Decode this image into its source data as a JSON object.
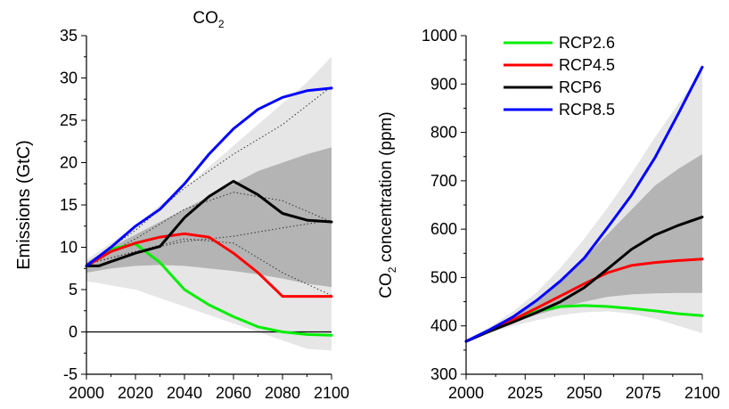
{
  "chart_data": [
    {
      "type": "line",
      "title": "CO",
      "title_sub": "2",
      "xlabel": "",
      "ylabel": "Emissions (GtC)",
      "xlim": [
        2000,
        2100
      ],
      "ylim": [
        -5,
        35
      ],
      "xticks": [
        2000,
        2020,
        2040,
        2060,
        2080,
        2100
      ],
      "yticks": [
        -5,
        0,
        5,
        10,
        15,
        20,
        25,
        30,
        35
      ],
      "zero_line": true,
      "bands": [
        {
          "role": "outer-range",
          "color": "#e6e6e6",
          "x": [
            2000,
            2010,
            2020,
            2030,
            2040,
            2050,
            2060,
            2070,
            2080,
            2090,
            2100
          ],
          "upper": [
            8.5,
            10.5,
            12.5,
            15.0,
            17.0,
            19.5,
            22.0,
            24.5,
            27.0,
            29.5,
            32.5
          ],
          "lower": [
            6.0,
            5.5,
            5.0,
            4.0,
            3.0,
            2.0,
            1.0,
            0.0,
            -1.0,
            -2.0,
            -2.2
          ]
        },
        {
          "role": "inner-range",
          "color": "#b4b4b4",
          "x": [
            2000,
            2010,
            2020,
            2030,
            2040,
            2050,
            2060,
            2070,
            2080,
            2090,
            2100
          ],
          "upper": [
            8.2,
            10.0,
            11.5,
            13.0,
            14.5,
            16.0,
            17.5,
            19.0,
            20.0,
            21.0,
            21.8
          ],
          "lower": [
            7.0,
            7.5,
            7.8,
            7.9,
            7.8,
            7.5,
            7.2,
            6.8,
            6.3,
            5.7,
            5.3
          ]
        }
      ],
      "reference_lines": [
        {
          "style": "dotted",
          "x": [
            2000,
            2020,
            2040,
            2060,
            2080,
            2100
          ],
          "y": [
            8.0,
            12.0,
            17.0,
            21.0,
            24.5,
            29.0
          ]
        },
        {
          "style": "dotted",
          "x": [
            2000,
            2020,
            2040,
            2060,
            2080,
            2100
          ],
          "y": [
            8.0,
            11.0,
            14.5,
            16.5,
            15.5,
            13.0
          ]
        },
        {
          "style": "dotted",
          "x": [
            2000,
            2020,
            2040,
            2060,
            2080,
            2100
          ],
          "y": [
            8.0,
            9.5,
            10.7,
            11.3,
            12.3,
            13.2
          ]
        },
        {
          "style": "dotted",
          "x": [
            2000,
            2020,
            2040,
            2060,
            2080,
            2100
          ],
          "y": [
            8.0,
            9.5,
            11.0,
            10.5,
            7.0,
            4.3
          ]
        }
      ],
      "series": [
        {
          "name": "RCP2.6",
          "color": "#00ee00",
          "x": [
            2000,
            2010,
            2020,
            2030,
            2040,
            2050,
            2060,
            2070,
            2080,
            2090,
            2100
          ],
          "y": [
            7.8,
            9.8,
            10.4,
            8.2,
            5.0,
            3.2,
            1.8,
            0.6,
            0.0,
            -0.3,
            -0.4
          ]
        },
        {
          "name": "RCP4.5",
          "color": "#ff0000",
          "x": [
            2000,
            2010,
            2020,
            2030,
            2040,
            2050,
            2060,
            2070,
            2080,
            2090,
            2100
          ],
          "y": [
            7.8,
            9.5,
            10.5,
            11.2,
            11.6,
            11.2,
            9.3,
            7.0,
            4.2,
            4.2,
            4.2
          ]
        },
        {
          "name": "RCP6",
          "color": "#000000",
          "x": [
            2000,
            2005,
            2010,
            2020,
            2030,
            2040,
            2050,
            2060,
            2070,
            2080,
            2090,
            2100
          ],
          "y": [
            7.8,
            7.8,
            8.3,
            9.3,
            10.1,
            13.5,
            16.0,
            17.8,
            16.2,
            14.0,
            13.2,
            13.0
          ]
        },
        {
          "name": "RCP8.5",
          "color": "#0000ff",
          "x": [
            2000,
            2010,
            2020,
            2030,
            2040,
            2050,
            2060,
            2070,
            2080,
            2090,
            2100
          ],
          "y": [
            7.8,
            10.0,
            12.5,
            14.5,
            17.5,
            21.0,
            24.0,
            26.3,
            27.7,
            28.5,
            28.8
          ]
        }
      ]
    },
    {
      "type": "line",
      "title": "",
      "xlabel": "",
      "ylabel_parts": [
        "CO",
        "2",
        " concentration (ppm)"
      ],
      "xlim": [
        2000,
        2100
      ],
      "ylim": [
        300,
        1000
      ],
      "xticks": [
        2000,
        2025,
        2050,
        2075,
        2100
      ],
      "yticks": [
        300,
        400,
        500,
        600,
        700,
        800,
        900,
        1000
      ],
      "legend": {
        "position": "top-left",
        "entries": [
          "RCP2.6",
          "RCP4.5",
          "RCP6",
          "RCP8.5"
        ]
      },
      "bands": [
        {
          "role": "outer-range",
          "color": "#e6e6e6",
          "x": [
            2000,
            2010,
            2020,
            2030,
            2040,
            2050,
            2060,
            2070,
            2080,
            2090,
            2100
          ],
          "upper": [
            372,
            398,
            430,
            470,
            520,
            580,
            645,
            715,
            790,
            860,
            930
          ],
          "lower": [
            365,
            385,
            400,
            412,
            422,
            428,
            430,
            425,
            415,
            400,
            385
          ]
        },
        {
          "role": "inner-range",
          "color": "#b4b4b4",
          "x": [
            2000,
            2010,
            2020,
            2030,
            2040,
            2050,
            2060,
            2070,
            2080,
            2090,
            2100
          ],
          "upper": [
            370,
            392,
            418,
            450,
            490,
            540,
            590,
            640,
            690,
            725,
            755
          ],
          "lower": [
            367,
            388,
            407,
            423,
            437,
            450,
            460,
            465,
            467,
            468,
            468
          ]
        }
      ],
      "series": [
        {
          "name": "RCP2.6",
          "color": "#00ee00",
          "x": [
            2000,
            2010,
            2020,
            2030,
            2040,
            2050,
            2060,
            2070,
            2080,
            2090,
            2100
          ],
          "y": [
            368,
            390,
            412,
            430,
            440,
            442,
            440,
            436,
            431,
            425,
            421
          ]
        },
        {
          "name": "RCP4.5",
          "color": "#ff0000",
          "x": [
            2000,
            2010,
            2020,
            2030,
            2040,
            2050,
            2060,
            2070,
            2080,
            2090,
            2100
          ],
          "y": [
            368,
            390,
            413,
            437,
            462,
            487,
            510,
            525,
            531,
            535,
            538
          ]
        },
        {
          "name": "RCP6",
          "color": "#000000",
          "x": [
            2000,
            2010,
            2020,
            2030,
            2040,
            2050,
            2060,
            2070,
            2080,
            2090,
            2100
          ],
          "y": [
            368,
            389,
            408,
            428,
            450,
            479,
            518,
            558,
            588,
            608,
            625
          ]
        },
        {
          "name": "RCP8.5",
          "color": "#0000ff",
          "x": [
            2000,
            2010,
            2020,
            2030,
            2040,
            2050,
            2060,
            2070,
            2080,
            2090,
            2100
          ],
          "y": [
            368,
            392,
            419,
            453,
            493,
            540,
            604,
            670,
            748,
            840,
            935
          ]
        }
      ]
    }
  ]
}
